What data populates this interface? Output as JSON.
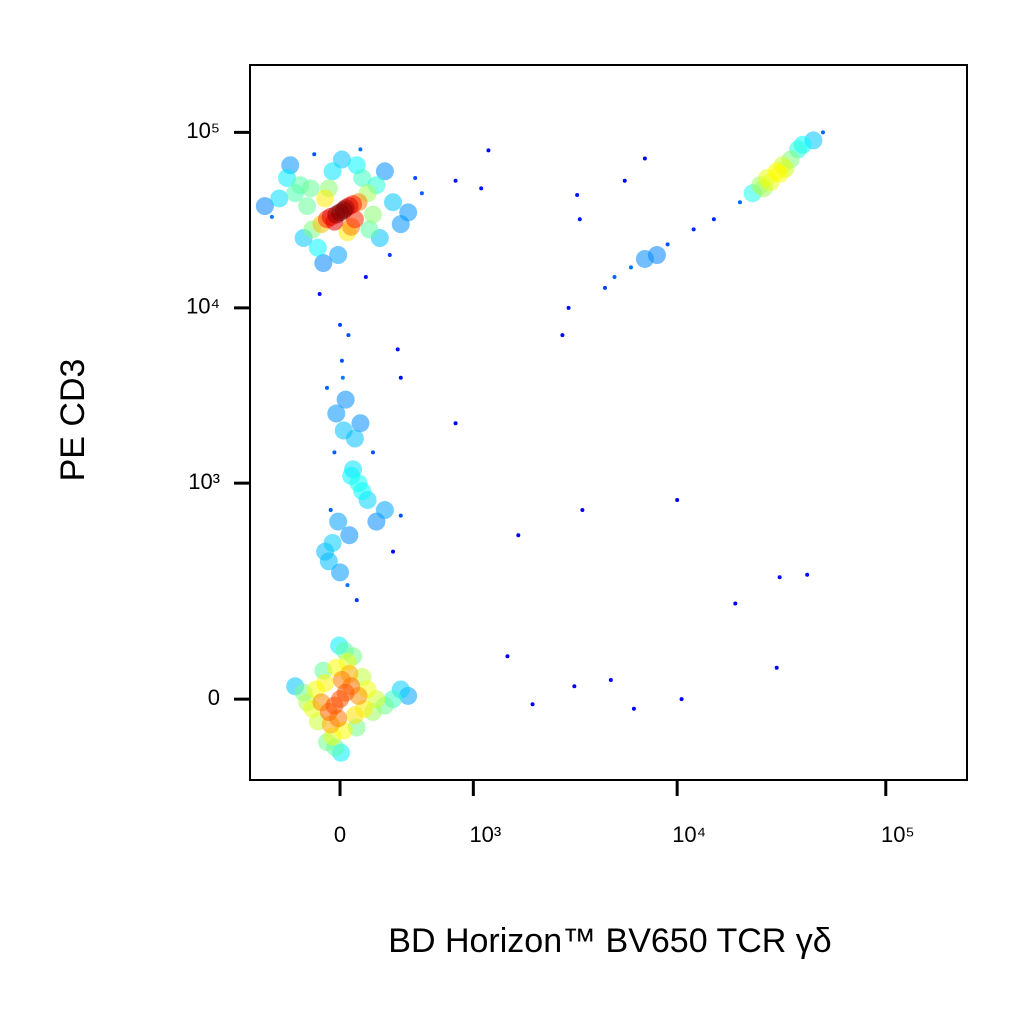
{
  "chart_data": {
    "type": "scatter",
    "x_label": "BD Horizon™ BV650  TCR γδ",
    "y_label": "PE CD3",
    "xscale": "biexponential",
    "yscale": "biexponential",
    "xlim": [
      -565,
      245000
    ],
    "ylim": [
      -150,
      242000
    ],
    "xticks": [
      0,
      {
        "value": 1000,
        "label": "10³"
      },
      {
        "value": 10000,
        "label": "10⁴"
      },
      {
        "value": 100000,
        "label": "10⁵"
      }
    ],
    "yticks": [
      0,
      {
        "value": 1000,
        "label": "10³"
      },
      {
        "value": 10000,
        "label": "10⁴"
      },
      {
        "value": 100000,
        "label": "10⁵"
      }
    ],
    "colormap": "jet",
    "x": [
      0,
      50,
      -50,
      100,
      -100,
      20,
      -20,
      150,
      -150,
      80,
      -80,
      200,
      -200,
      30,
      -30,
      120,
      -120,
      250,
      -250,
      60,
      -60,
      300,
      -300,
      10,
      -10,
      180,
      -180,
      350,
      -350,
      90,
      -90,
      400,
      -400,
      40,
      -40,
      220,
      -220,
      140,
      -140,
      70,
      -70,
      280,
      -280,
      500,
      -450,
      450,
      160,
      -160,
      110,
      -110,
      0,
      30,
      -30,
      60,
      -60,
      10,
      -10,
      100,
      -100,
      50,
      -50,
      150,
      -150,
      20,
      -20,
      80,
      -80,
      200,
      -200,
      40,
      -40,
      250,
      -250,
      120,
      -120,
      300,
      70,
      -70,
      350,
      90,
      -90,
      180,
      -180,
      25,
      -25,
      400,
      130,
      -130,
      5,
      -5,
      0,
      50,
      -50,
      100,
      -30,
      20,
      150,
      -80,
      70,
      200,
      -20,
      30,
      120,
      -60,
      10,
      80,
      250,
      -40,
      40,
      300,
      0,
      60,
      -10,
      90,
      180,
      -70,
      110,
      15,
      350,
      45,
      25000,
      27000,
      30000,
      32000,
      35000,
      28000,
      23000,
      38000,
      40000,
      33000,
      20000,
      15000,
      12000,
      9000,
      8000,
      6000,
      5000,
      4500,
      7000,
      3000,
      2800,
      45000,
      50000,
      26000,
      31000,
      800,
      1700,
      3500,
      10000,
      19000,
      31000,
      42000,
      30000,
      1500,
      3200,
      4800,
      6200,
      10500,
      2000,
      3300,
      3400,
      5600,
      7000,
      1200,
      800,
      1100,
      330,
      350
    ],
    "y": [
      35000,
      38000,
      33000,
      40000,
      30000,
      36000,
      34000,
      45000,
      28000,
      32000,
      42000,
      50000,
      25000,
      37000,
      31000,
      55000,
      22000,
      60000,
      45000,
      29000,
      48000,
      40000,
      55000,
      70000,
      20000,
      34000,
      38000,
      30000,
      42000,
      65000,
      18000,
      35000,
      33000,
      27000,
      60000,
      25000,
      50000,
      15000,
      75000,
      39000,
      32000,
      20000,
      65000,
      45000,
      38000,
      55000,
      28000,
      48000,
      80000,
      12000,
      0,
      10,
      -10,
      20,
      -20,
      30,
      -30,
      5,
      -5,
      40,
      -40,
      15,
      -15,
      -50,
      50,
      -25,
      25,
      0,
      10,
      60,
      -60,
      -10,
      20,
      35,
      -35,
      0,
      70,
      -70,
      15,
      -45,
      45,
      -20,
      -5,
      80,
      -80,
      5,
      -15,
      15,
      -90,
      90,
      300,
      500,
      700,
      1000,
      1500,
      2000,
      800,
      400,
      1200,
      600,
      2500,
      3000,
      900,
      350,
      5000,
      1800,
      700,
      450,
      250,
      400,
      8000,
      1100,
      600,
      200,
      1500,
      3500,
      2200,
      4000,
      650,
      7000,
      50000,
      55000,
      60000,
      65000,
      70000,
      52000,
      45000,
      80000,
      85000,
      62000,
      40000,
      32000,
      28000,
      23000,
      20000,
      17000,
      15000,
      13000,
      19000,
      10000,
      7000,
      90000,
      100000,
      48000,
      58000,
      2200,
      500,
      700,
      800,
      190,
      280,
      290,
      50,
      70,
      20,
      30,
      -15,
      0,
      -8,
      44000,
      32000,
      53000,
      71000,
      79000,
      53000,
      48000,
      5800,
      4000
    ]
  }
}
